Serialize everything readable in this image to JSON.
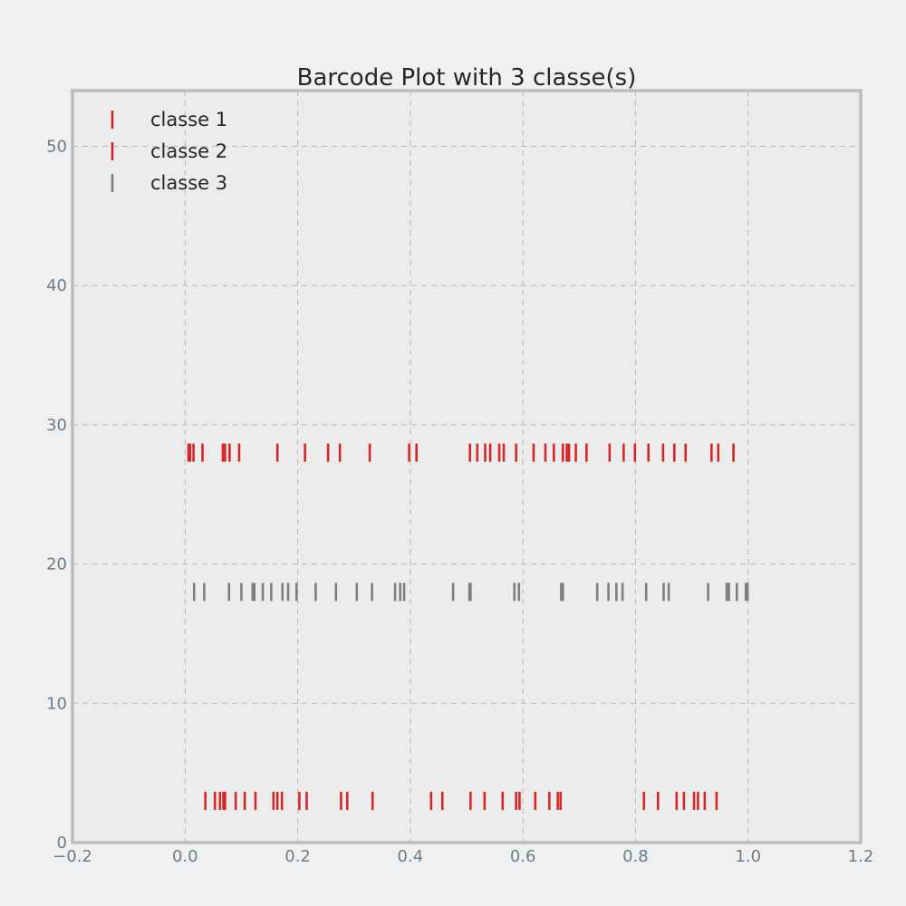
{
  "chart_data": {
    "type": "scatter",
    "title": "Barcode Plot with 3 classe(s)",
    "xlabel": "",
    "ylabel": "",
    "xlim": [
      -0.2,
      1.2
    ],
    "ylim": [
      0,
      54
    ],
    "x_ticks": [
      -0.2,
      0.0,
      0.2,
      0.4,
      0.6,
      0.8,
      1.0,
      1.2
    ],
    "x_tick_labels": [
      "−0.2",
      "0.0",
      "0.2",
      "0.4",
      "0.6",
      "0.8",
      "1.0",
      "1.2"
    ],
    "y_ticks": [
      0,
      10,
      20,
      30,
      40,
      50
    ],
    "y_tick_labels": [
      "0",
      "10",
      "20",
      "30",
      "40",
      "50"
    ],
    "grid": true,
    "legend_position": "top-left",
    "marker": "|",
    "series": [
      {
        "name": "classe 1",
        "color": "#d62728",
        "y": 3,
        "x": [
          0.036,
          0.053,
          0.062,
          0.068,
          0.071,
          0.09,
          0.106,
          0.125,
          0.157,
          0.164,
          0.172,
          0.203,
          0.216,
          0.277,
          0.288,
          0.333,
          0.437,
          0.457,
          0.507,
          0.532,
          0.564,
          0.588,
          0.594,
          0.622,
          0.647,
          0.662,
          0.667,
          0.815,
          0.84,
          0.873,
          0.886,
          0.904,
          0.911,
          0.923,
          0.944
        ]
      },
      {
        "name": "classe 2",
        "color": "#d62728",
        "y": 28,
        "x": [
          0.006,
          0.009,
          0.015,
          0.031,
          0.067,
          0.071,
          0.079,
          0.096,
          0.164,
          0.213,
          0.254,
          0.275,
          0.328,
          0.398,
          0.411,
          0.506,
          0.519,
          0.533,
          0.542,
          0.558,
          0.566,
          0.588,
          0.619,
          0.64,
          0.655,
          0.671,
          0.678,
          0.682,
          0.694,
          0.713,
          0.754,
          0.779,
          0.799,
          0.823,
          0.849,
          0.869,
          0.889,
          0.935,
          0.947,
          0.974
        ]
      },
      {
        "name": "classe 3",
        "color": "#7f7f7f",
        "y": 18,
        "x": [
          0.016,
          0.034,
          0.078,
          0.1,
          0.12,
          0.123,
          0.138,
          0.153,
          0.173,
          0.183,
          0.198,
          0.232,
          0.268,
          0.305,
          0.332,
          0.373,
          0.382,
          0.389,
          0.476,
          0.505,
          0.507,
          0.585,
          0.593,
          0.668,
          0.671,
          0.732,
          0.752,
          0.766,
          0.777,
          0.819,
          0.85,
          0.859,
          0.929,
          0.962,
          0.966,
          0.98,
          0.996,
          0.999
        ]
      }
    ]
  }
}
